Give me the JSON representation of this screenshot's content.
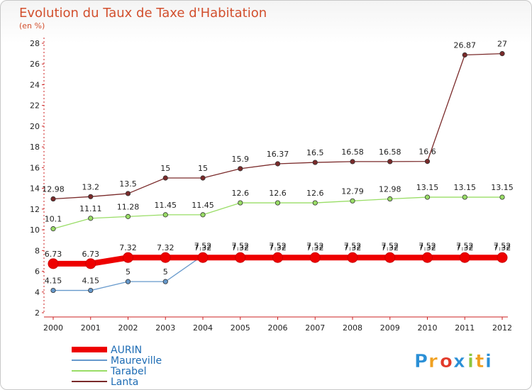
{
  "chart_data": {
    "type": "line",
    "title": "Evolution du Taux de Taxe d'Habitation",
    "subtitle": "(en %)",
    "xlabel": "",
    "ylabel": "",
    "x": [
      "2000",
      "2001",
      "2002",
      "2003",
      "2004",
      "2005",
      "2006",
      "2007",
      "2008",
      "2009",
      "2010",
      "2011",
      "2012"
    ],
    "ylim": [
      2,
      28
    ],
    "yticks": [
      2,
      4,
      6,
      8,
      10,
      12,
      14,
      16,
      18,
      20,
      22,
      24,
      26,
      28
    ],
    "grid": false,
    "legend_placement": "bottom-left",
    "series": [
      {
        "name": "AURIN",
        "color": "#ee0000",
        "values": [
          6.73,
          6.73,
          7.32,
          7.32,
          7.32,
          7.32,
          7.32,
          7.32,
          7.32,
          7.32,
          7.32,
          7.32,
          7.32
        ],
        "labels": [
          "6.73",
          "6.73",
          "7.32",
          "7.32",
          "7.32",
          "7.32",
          "7.32",
          "7.32",
          "7.32",
          "7.32",
          "7.32",
          "7.32",
          "7.32"
        ]
      },
      {
        "name": "Maureville",
        "color": "#6699cc",
        "values": [
          4.15,
          4.15,
          5,
          5,
          7.52,
          7.52,
          7.52,
          7.52,
          7.52,
          7.52,
          7.52,
          7.52,
          7.52
        ],
        "labels": [
          "4.15",
          "4.15",
          "5",
          "5",
          "7.52",
          "7.52",
          "7.52",
          "7.52",
          "7.52",
          "7.52",
          "7.52",
          "7.52",
          "7.52"
        ]
      },
      {
        "name": "Tarabel",
        "color": "#99dd66",
        "values": [
          10.1,
          11.11,
          11.28,
          11.45,
          11.45,
          12.6,
          12.6,
          12.6,
          12.79,
          12.98,
          13.15,
          13.15,
          13.15
        ],
        "labels": [
          "10.1",
          "11.11",
          "11.28",
          "11.45",
          "11.45",
          "12.6",
          "12.6",
          "12.6",
          "12.79",
          "12.98",
          "13.15",
          "13.15",
          "13.15"
        ]
      },
      {
        "name": "Lanta",
        "color": "#7a2a2a",
        "values": [
          12.98,
          13.2,
          13.5,
          15,
          15,
          15.9,
          16.37,
          16.5,
          16.58,
          16.58,
          16.6,
          26.87,
          27
        ],
        "labels": [
          "12.98",
          "13.2",
          "13.5",
          "15",
          "15",
          "15.9",
          "16.37",
          "16.5",
          "16.58",
          "16.58",
          "16.6",
          "26.87",
          "27"
        ]
      }
    ]
  },
  "logo": {
    "text": "Proxiti",
    "letters": [
      "P",
      "r",
      "o",
      "x",
      "i",
      "t",
      "i"
    ]
  }
}
